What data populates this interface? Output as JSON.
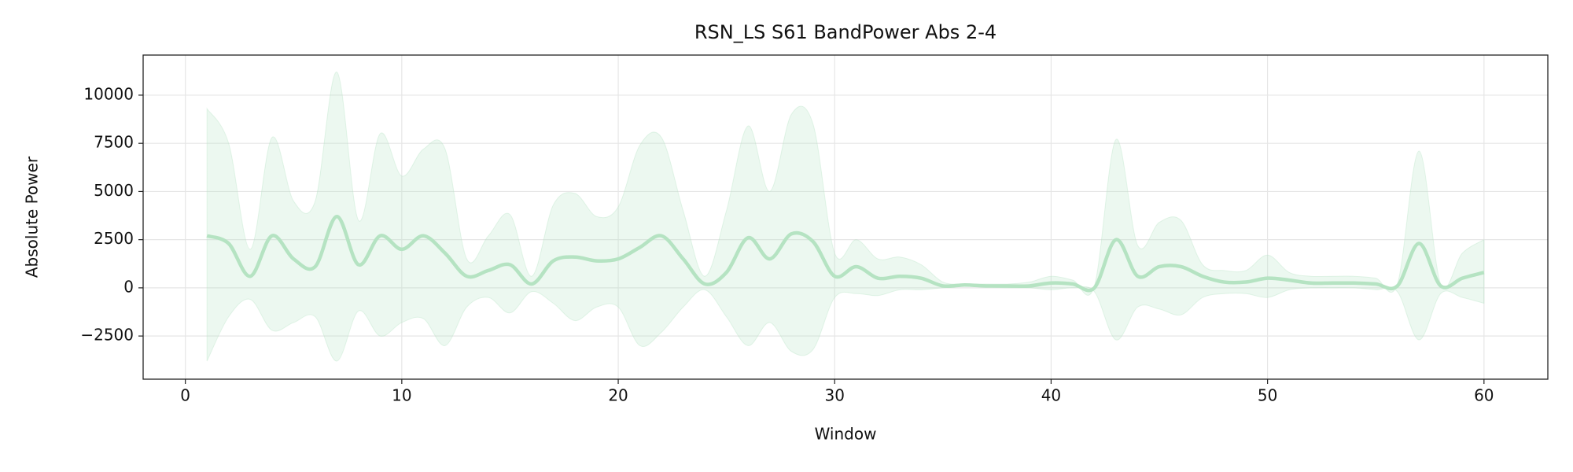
{
  "chart_data": {
    "type": "line",
    "title": "RSN_LS S61 BandPower Abs 2-4",
    "x_label": "Window",
    "y_label": "Absolute Power",
    "color": "#b5e3c2",
    "grid": true,
    "xlim": [
      -1.95,
      62.95
    ],
    "xticks": [
      0,
      10,
      20,
      30,
      40,
      50,
      60
    ],
    "ylim": [
      -4740,
      12080
    ],
    "yticks": [
      {
        "value": -2500,
        "label": "−2500"
      },
      0,
      2500,
      5000,
      7500,
      10000
    ],
    "x": [
      1,
      2,
      3,
      4,
      5,
      6,
      7,
      8,
      9,
      10,
      11,
      12,
      13,
      14,
      15,
      16,
      17,
      18,
      19,
      20,
      21,
      22,
      23,
      24,
      25,
      26,
      27,
      28,
      29,
      30,
      31,
      32,
      33,
      34,
      35,
      36,
      37,
      38,
      39,
      40,
      41,
      42,
      43,
      44,
      45,
      46,
      47,
      48,
      49,
      50,
      51,
      52,
      53,
      54,
      55,
      56,
      57,
      58,
      59,
      60
    ],
    "values": [
      2700,
      2300,
      600,
      2700,
      1500,
      1100,
      3700,
      1200,
      2700,
      2000,
      2700,
      1800,
      600,
      900,
      1200,
      200,
      1400,
      1600,
      1400,
      1500,
      2100,
      2700,
      1500,
      200,
      800,
      2600,
      1500,
      2800,
      2400,
      600,
      1100,
      500,
      600,
      500,
      100,
      150,
      100,
      100,
      100,
      250,
      200,
      0,
      2500,
      600,
      1100,
      1100,
      600,
      300,
      300,
      500,
      400,
      250,
      250,
      250,
      200,
      100,
      2300,
      100,
      500,
      800
    ],
    "upper": [
      9300,
      7500,
      2000,
      7800,
      4500,
      4500,
      11200,
      3500,
      8000,
      5800,
      7200,
      7200,
      1500,
      2700,
      3800,
      600,
      4300,
      4900,
      3700,
      4200,
      7400,
      7800,
      4000,
      600,
      4000,
      8400,
      5000,
      9000,
      8500,
      1800,
      2500,
      1500,
      1600,
      1200,
      300,
      200,
      200,
      200,
      300,
      600,
      400,
      100,
      7700,
      2200,
      3400,
      3500,
      1200,
      900,
      900,
      1700,
      800,
      600,
      600,
      600,
      500,
      200,
      7100,
      200,
      1800,
      2500
    ],
    "lower": [
      -3800,
      -1500,
      -600,
      -2200,
      -1800,
      -1500,
      -3800,
      -1200,
      -2500,
      -1800,
      -1600,
      -3000,
      -1000,
      -500,
      -1300,
      -200,
      -800,
      -1700,
      -1000,
      -1000,
      -3000,
      -2300,
      -1000,
      -100,
      -1500,
      -3000,
      -1800,
      -3300,
      -3200,
      -500,
      -300,
      -400,
      -100,
      -100,
      0,
      100,
      50,
      0,
      0,
      -100,
      0,
      -200,
      -2700,
      -1000,
      -1100,
      -1400,
      -500,
      -300,
      -300,
      -500,
      -100,
      0,
      0,
      0,
      -100,
      -200,
      -2700,
      -300,
      -500,
      -800
    ]
  }
}
